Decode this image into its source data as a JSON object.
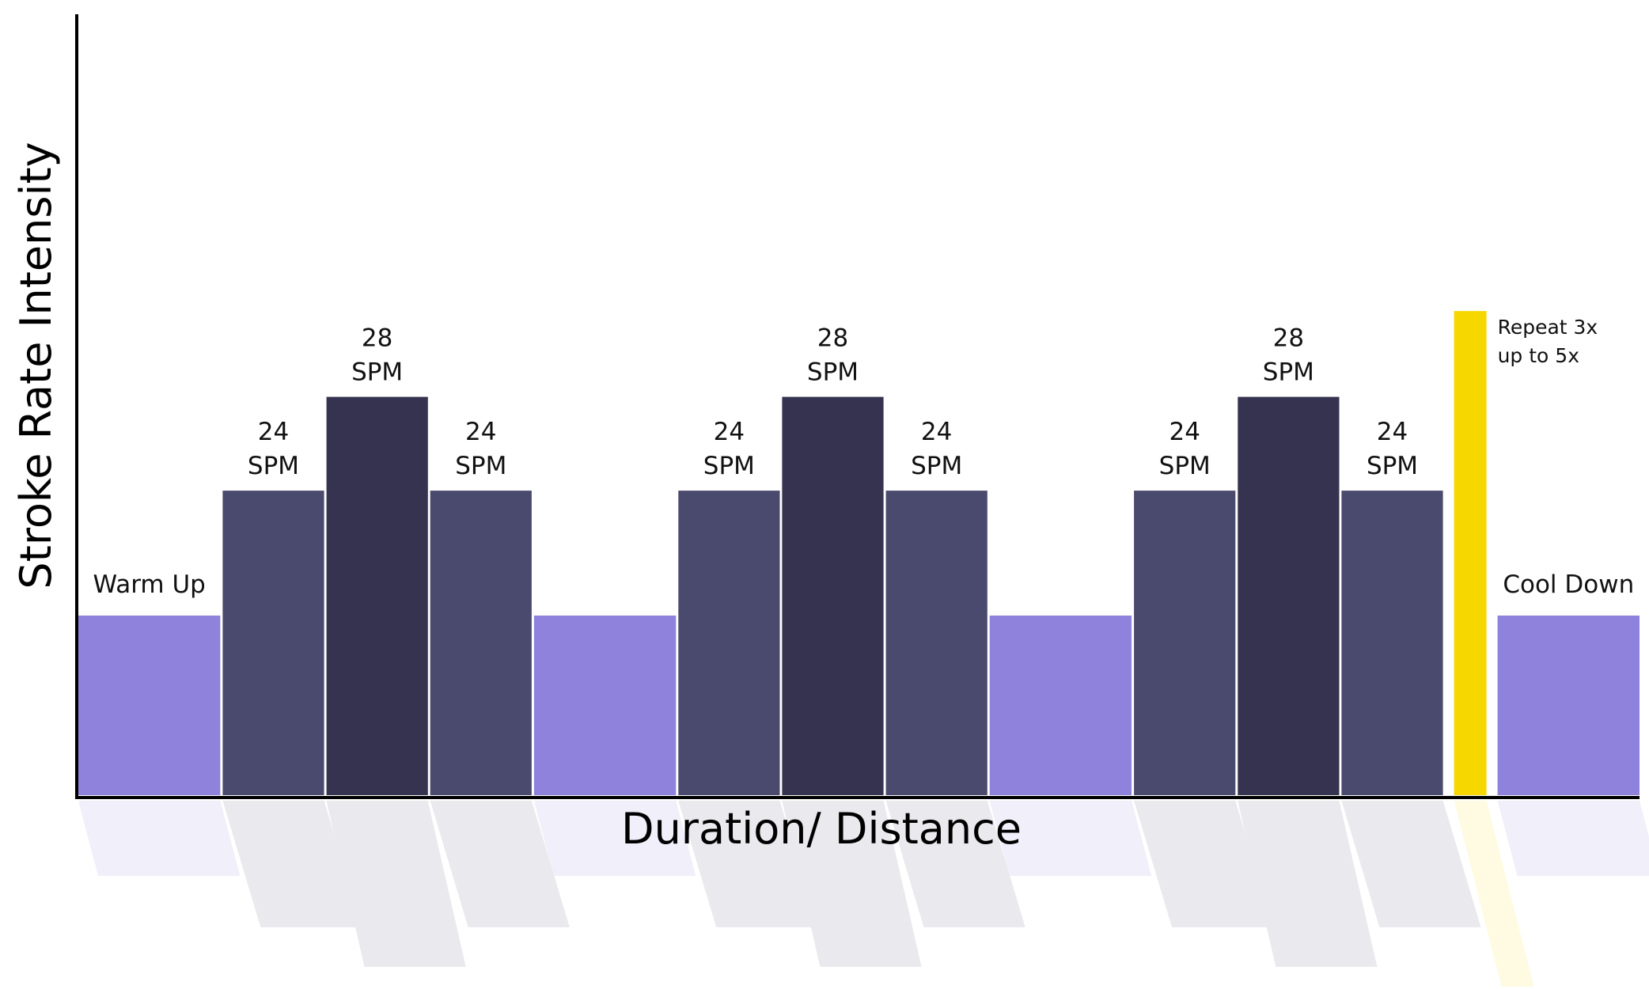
{
  "chart_data": {
    "type": "bar",
    "ylabel": "Stroke Rate Intensity",
    "xlabel": "Duration/ Distance",
    "ylim": [
      0,
      100
    ],
    "segments": [
      {
        "kind": "easy",
        "width": 1.4,
        "value": 23,
        "label": [
          "Warm Up"
        ]
      },
      {
        "kind": "work",
        "width": 1.0,
        "value": 39,
        "label": [
          "24",
          "SPM"
        ]
      },
      {
        "kind": "peak",
        "width": 1.0,
        "value": 51,
        "label": [
          "28",
          "SPM"
        ]
      },
      {
        "kind": "work",
        "width": 1.0,
        "value": 39,
        "label": [
          "24",
          "SPM"
        ]
      },
      {
        "kind": "easy",
        "width": 1.4,
        "value": 23,
        "label": []
      },
      {
        "kind": "work",
        "width": 1.0,
        "value": 39,
        "label": [
          "24",
          "SPM"
        ]
      },
      {
        "kind": "peak",
        "width": 1.0,
        "value": 51,
        "label": [
          "28",
          "SPM"
        ]
      },
      {
        "kind": "work",
        "width": 1.0,
        "value": 39,
        "label": [
          "24",
          "SPM"
        ]
      },
      {
        "kind": "easy",
        "width": 1.4,
        "value": 23,
        "label": []
      },
      {
        "kind": "work",
        "width": 1.0,
        "value": 39,
        "label": [
          "24",
          "SPM"
        ]
      },
      {
        "kind": "peak",
        "width": 1.0,
        "value": 51,
        "label": [
          "28",
          "SPM"
        ]
      },
      {
        "kind": "work",
        "width": 1.0,
        "value": 39,
        "label": [
          "24",
          "SPM"
        ]
      },
      {
        "kind": "repeat",
        "width": 0.32,
        "value": 62,
        "label": [
          "Repeat 3x",
          "up to 5x"
        ]
      },
      {
        "kind": "easy",
        "width": 1.4,
        "value": 23,
        "label": [
          "Cool Down"
        ]
      }
    ],
    "colors": {
      "easy": "#8e82dc",
      "work": "#4a4a6e",
      "peak": "#363350",
      "repeat": "#f6d800",
      "axis": "#000000"
    }
  }
}
